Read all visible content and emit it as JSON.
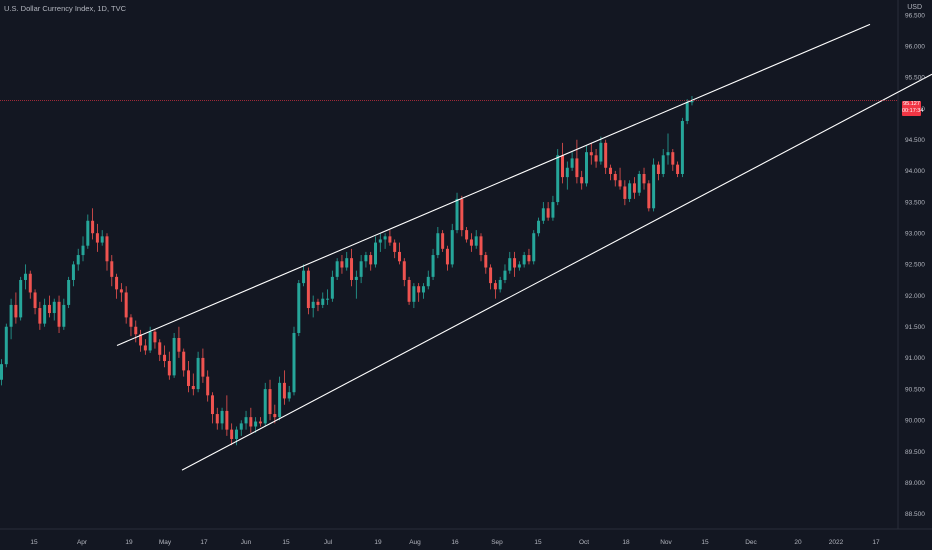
{
  "header": {
    "title": "U.S. Dollar Currency Index, 1D, TVC",
    "currency": "USD"
  },
  "price_tag": {
    "price": "95.127",
    "countdown": "00:17:34"
  },
  "colors": {
    "background": "#131722",
    "up": "#26a69a",
    "down": "#ef5350",
    "trendline": "#ffffff",
    "last_price_line": "#f23645"
  },
  "chart_data": {
    "type": "candlestick",
    "title": "U.S. Dollar Currency Index, 1D, TVC",
    "y_axis": {
      "side": "right",
      "ticks": [
        "96.500",
        "96.000",
        "95.500",
        "95.000",
        "94.500",
        "94.000",
        "93.500",
        "93.000",
        "92.500",
        "92.000",
        "91.500",
        "91.000",
        "90.500",
        "90.000",
        "89.500",
        "89.000",
        "88.500"
      ],
      "ylim": [
        88.35,
        96.65
      ]
    },
    "x_axis": {
      "ticks": [
        "15",
        "Apr",
        "19",
        "May",
        "17",
        "Jun",
        "15",
        "Jul",
        "19",
        "Aug",
        "16",
        "Sep",
        "15",
        "Oct",
        "18",
        "Nov",
        "15",
        "Dec",
        "20",
        "2022",
        "17"
      ]
    },
    "last_price": 95.127,
    "ohlc": [
      [
        90.65,
        90.98,
        90.56,
        90.9
      ],
      [
        90.9,
        91.55,
        90.85,
        91.5
      ],
      [
        91.5,
        91.95,
        91.3,
        91.85
      ],
      [
        91.85,
        92.05,
        91.55,
        91.65
      ],
      [
        91.65,
        92.3,
        91.6,
        92.25
      ],
      [
        92.25,
        92.5,
        92.1,
        92.35
      ],
      [
        92.35,
        92.4,
        91.95,
        92.05
      ],
      [
        92.05,
        92.1,
        91.7,
        91.8
      ],
      [
        91.8,
        91.9,
        91.45,
        91.55
      ],
      [
        91.55,
        91.95,
        91.5,
        91.85
      ],
      [
        91.85,
        92.0,
        91.65,
        91.72
      ],
      [
        91.72,
        91.95,
        91.6,
        91.9
      ],
      [
        91.9,
        92.0,
        91.4,
        91.5
      ],
      [
        91.5,
        91.95,
        91.45,
        91.85
      ],
      [
        91.85,
        92.3,
        91.8,
        92.25
      ],
      [
        92.25,
        92.55,
        92.15,
        92.5
      ],
      [
        92.5,
        92.75,
        92.4,
        92.65
      ],
      [
        92.65,
        92.95,
        92.55,
        92.8
      ],
      [
        92.8,
        93.3,
        92.75,
        93.2
      ],
      [
        93.2,
        93.4,
        92.9,
        93.0
      ],
      [
        93.0,
        93.15,
        92.7,
        92.85
      ],
      [
        92.85,
        93.05,
        92.8,
        92.95
      ],
      [
        92.95,
        93.0,
        92.4,
        92.55
      ],
      [
        92.55,
        92.65,
        92.15,
        92.3
      ],
      [
        92.3,
        92.35,
        91.95,
        92.1
      ],
      [
        92.1,
        92.2,
        91.9,
        92.05
      ],
      [
        92.05,
        92.15,
        91.55,
        91.65
      ],
      [
        91.65,
        91.7,
        91.35,
        91.5
      ],
      [
        91.5,
        91.6,
        91.25,
        91.38
      ],
      [
        91.38,
        91.45,
        91.1,
        91.2
      ],
      [
        91.2,
        91.3,
        91.05,
        91.12
      ],
      [
        91.12,
        91.5,
        91.08,
        91.42
      ],
      [
        91.42,
        91.45,
        91.15,
        91.25
      ],
      [
        91.25,
        91.3,
        90.95,
        91.05
      ],
      [
        91.05,
        91.2,
        90.85,
        90.95
      ],
      [
        90.95,
        91.1,
        90.65,
        90.72
      ],
      [
        90.72,
        91.4,
        90.68,
        91.32
      ],
      [
        91.32,
        91.5,
        91.0,
        91.1
      ],
      [
        91.1,
        91.15,
        90.7,
        90.8
      ],
      [
        90.8,
        90.95,
        90.45,
        90.55
      ],
      [
        90.55,
        90.75,
        90.4,
        90.5
      ],
      [
        90.5,
        91.1,
        90.45,
        91.0
      ],
      [
        91.0,
        91.15,
        90.6,
        90.7
      ],
      [
        90.7,
        90.8,
        90.3,
        90.4
      ],
      [
        90.4,
        90.45,
        89.95,
        90.1
      ],
      [
        90.1,
        90.2,
        89.85,
        89.95
      ],
      [
        89.95,
        90.2,
        89.85,
        90.15
      ],
      [
        90.15,
        90.4,
        89.75,
        89.85
      ],
      [
        89.85,
        89.95,
        89.6,
        89.7
      ],
      [
        89.7,
        89.9,
        89.6,
        89.85
      ],
      [
        89.85,
        90.0,
        89.75,
        89.95
      ],
      [
        89.95,
        90.15,
        89.85,
        90.05
      ],
      [
        90.05,
        90.2,
        89.8,
        89.9
      ],
      [
        89.9,
        90.05,
        89.8,
        89.98
      ],
      [
        89.98,
        90.05,
        89.9,
        89.95
      ],
      [
        89.95,
        90.6,
        89.9,
        90.5
      ],
      [
        90.5,
        90.65,
        90.0,
        90.1
      ],
      [
        90.1,
        90.25,
        89.95,
        90.05
      ],
      [
        90.05,
        90.7,
        90.0,
        90.6
      ],
      [
        90.6,
        90.8,
        90.25,
        90.35
      ],
      [
        90.35,
        90.55,
        90.3,
        90.45
      ],
      [
        90.45,
        91.5,
        90.4,
        91.4
      ],
      [
        91.4,
        92.25,
        91.35,
        92.2
      ],
      [
        92.2,
        92.5,
        92.15,
        92.4
      ],
      [
        92.4,
        92.45,
        91.7,
        91.8
      ],
      [
        91.8,
        92.0,
        91.65,
        91.9
      ],
      [
        91.9,
        91.95,
        91.75,
        91.85
      ],
      [
        91.85,
        92.05,
        91.8,
        91.95
      ],
      [
        91.95,
        92.1,
        91.85,
        91.95
      ],
      [
        91.95,
        92.4,
        91.9,
        92.3
      ],
      [
        92.3,
        92.6,
        92.25,
        92.55
      ],
      [
        92.55,
        92.65,
        92.35,
        92.45
      ],
      [
        92.45,
        92.7,
        92.4,
        92.6
      ],
      [
        92.6,
        92.75,
        92.15,
        92.25
      ],
      [
        92.25,
        92.4,
        91.95,
        92.3
      ],
      [
        92.3,
        92.65,
        92.2,
        92.55
      ],
      [
        92.55,
        92.7,
        92.45,
        92.65
      ],
      [
        92.65,
        92.7,
        92.4,
        92.5
      ],
      [
        92.5,
        92.95,
        92.45,
        92.85
      ],
      [
        92.85,
        93.0,
        92.7,
        92.9
      ],
      [
        92.9,
        93.0,
        92.75,
        92.95
      ],
      [
        92.95,
        93.05,
        92.8,
        92.85
      ],
      [
        92.85,
        92.9,
        92.6,
        92.7
      ],
      [
        92.7,
        92.85,
        92.5,
        92.55
      ],
      [
        92.55,
        92.6,
        92.15,
        92.25
      ],
      [
        92.25,
        92.3,
        91.85,
        91.9
      ],
      [
        91.9,
        92.2,
        91.8,
        92.15
      ],
      [
        92.15,
        92.2,
        91.9,
        92.05
      ],
      [
        92.05,
        92.2,
        91.95,
        92.15
      ],
      [
        92.15,
        92.4,
        92.1,
        92.3
      ],
      [
        92.3,
        92.75,
        92.25,
        92.65
      ],
      [
        92.65,
        93.1,
        92.6,
        93.0
      ],
      [
        93.0,
        93.05,
        92.7,
        92.75
      ],
      [
        92.75,
        92.8,
        92.4,
        92.5
      ],
      [
        92.5,
        93.15,
        92.45,
        93.05
      ],
      [
        93.05,
        93.65,
        93.0,
        93.55
      ],
      [
        93.55,
        93.6,
        92.95,
        93.05
      ],
      [
        93.05,
        93.1,
        92.85,
        92.9
      ],
      [
        92.9,
        93.0,
        92.7,
        92.8
      ],
      [
        92.8,
        93.05,
        92.75,
        92.95
      ],
      [
        92.95,
        93.0,
        92.55,
        92.65
      ],
      [
        92.65,
        92.7,
        92.35,
        92.45
      ],
      [
        92.45,
        92.5,
        92.1,
        92.2
      ],
      [
        92.2,
        92.25,
        91.95,
        92.1
      ],
      [
        92.1,
        92.3,
        92.05,
        92.25
      ],
      [
        92.25,
        92.5,
        92.2,
        92.4
      ],
      [
        92.4,
        92.7,
        92.35,
        92.6
      ],
      [
        92.6,
        92.7,
        92.3,
        92.45
      ],
      [
        92.45,
        92.55,
        92.4,
        92.5
      ],
      [
        92.5,
        92.7,
        92.45,
        92.65
      ],
      [
        92.65,
        92.75,
        92.5,
        92.55
      ],
      [
        92.55,
        93.05,
        92.5,
        93.0
      ],
      [
        93.0,
        93.25,
        92.95,
        93.2
      ],
      [
        93.2,
        93.5,
        93.15,
        93.4
      ],
      [
        93.4,
        93.5,
        93.2,
        93.25
      ],
      [
        93.25,
        93.6,
        93.2,
        93.5
      ],
      [
        93.5,
        94.35,
        93.45,
        94.25
      ],
      [
        94.25,
        94.45,
        93.8,
        93.9
      ],
      [
        93.9,
        94.15,
        93.7,
        94.05
      ],
      [
        94.05,
        94.3,
        94.0,
        94.2
      ],
      [
        94.2,
        94.5,
        93.8,
        93.9
      ],
      [
        93.9,
        94.0,
        93.7,
        93.8
      ],
      [
        93.8,
        94.4,
        93.75,
        94.3
      ],
      [
        94.3,
        94.45,
        94.1,
        94.25
      ],
      [
        94.25,
        94.35,
        94.05,
        94.15
      ],
      [
        94.15,
        94.55,
        94.1,
        94.45
      ],
      [
        94.45,
        94.5,
        93.95,
        94.05
      ],
      [
        94.05,
        94.1,
        93.85,
        93.95
      ],
      [
        93.95,
        94.0,
        93.75,
        93.85
      ],
      [
        93.85,
        94.05,
        93.7,
        93.75
      ],
      [
        93.75,
        93.85,
        93.45,
        93.55
      ],
      [
        93.55,
        93.85,
        93.5,
        93.8
      ],
      [
        93.8,
        93.9,
        93.55,
        93.65
      ],
      [
        93.65,
        94.0,
        93.6,
        93.95
      ],
      [
        93.95,
        94.05,
        93.7,
        93.8
      ],
      [
        93.8,
        93.85,
        93.35,
        93.4
      ],
      [
        93.4,
        94.2,
        93.35,
        94.1
      ],
      [
        94.1,
        94.15,
        93.85,
        93.95
      ],
      [
        93.95,
        94.35,
        93.9,
        94.25
      ],
      [
        94.25,
        94.6,
        94.1,
        94.3
      ],
      [
        94.3,
        94.35,
        94.0,
        94.1
      ],
      [
        94.1,
        94.15,
        93.9,
        93.95
      ],
      [
        93.95,
        94.85,
        93.9,
        94.8
      ],
      [
        94.8,
        95.15,
        94.75,
        95.1
      ],
      [
        95.1,
        95.2,
        95.05,
        95.127
      ]
    ],
    "trendlines": [
      {
        "from": [
          91.2,
          117
        ],
        "to": [
          96.35,
          870
        ]
      },
      {
        "from": [
          89.2,
          182
        ],
        "to": [
          95.55,
          932
        ]
      }
    ]
  }
}
